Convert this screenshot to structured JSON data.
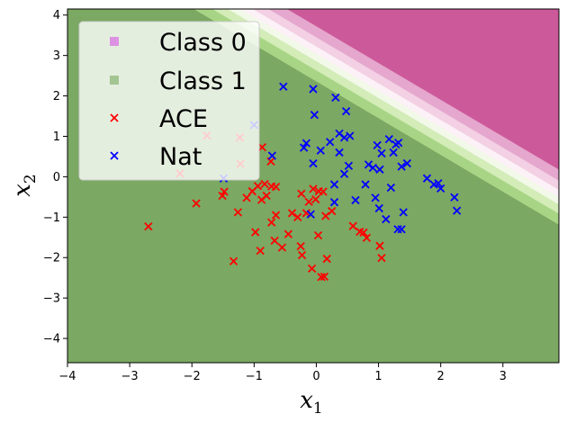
{
  "chart_data": {
    "type": "scatter",
    "title": "",
    "xlabel": "x",
    "xlabel_sub": "1",
    "ylabel": "x",
    "ylabel_sub": "2",
    "xlim": [
      -4.0,
      3.9
    ],
    "ylim": [
      -4.6,
      4.15
    ],
    "xticks": [
      -4,
      -3,
      -2,
      -1,
      0,
      1,
      2,
      3
    ],
    "yticks": [
      -4,
      -3,
      -2,
      -1,
      0,
      1,
      2,
      3,
      4
    ],
    "decision_boundary": {
      "direction": [
        1,
        1.1
      ],
      "bands": [
        {
          "from": -99,
          "to": 2.6,
          "color": "#7ba862"
        },
        {
          "from": 2.6,
          "to": 2.9,
          "color": "#a8d585"
        },
        {
          "from": 2.9,
          "to": 3.15,
          "color": "#d3ecb8"
        },
        {
          "from": 3.15,
          "to": 3.35,
          "color": "#f2f9e9"
        },
        {
          "from": 3.35,
          "to": 3.55,
          "color": "#fcf1f6"
        },
        {
          "from": 3.55,
          "to": 3.8,
          "color": "#f3d0e4"
        },
        {
          "from": 3.8,
          "to": 4.1,
          "color": "#e5a7cd"
        },
        {
          "from": 4.1,
          "to": 99,
          "color": "#cc5a9b"
        }
      ]
    },
    "legend": {
      "position": "top-left",
      "entries": [
        {
          "label": "Class 0",
          "marker": "square",
          "color": "#dc92e1"
        },
        {
          "label": "Class 1",
          "marker": "square",
          "color": "#a3c591"
        },
        {
          "label": "ACE",
          "marker": "x",
          "color": "#ff0000"
        },
        {
          "label": "Nat",
          "marker": "x",
          "color": "#0000ff"
        }
      ]
    },
    "series": [
      {
        "name": "ACE",
        "color": "#ff0000",
        "points": [
          [
            -2.7,
            -1.23
          ],
          [
            -1.93,
            -0.66
          ],
          [
            -2.19,
            0.08
          ],
          [
            -1.76,
            1.02
          ],
          [
            -1.23,
            0.97
          ],
          [
            -1.22,
            0.32
          ],
          [
            -0.87,
            0.73
          ],
          [
            -0.73,
            0.38
          ],
          [
            -1.51,
            -0.47
          ],
          [
            -1.48,
            -0.37
          ],
          [
            -1.33,
            -2.09
          ],
          [
            -1.26,
            -0.88
          ],
          [
            -1.12,
            -0.52
          ],
          [
            -1.03,
            -0.36
          ],
          [
            -0.94,
            -0.23
          ],
          [
            -0.83,
            -0.18
          ],
          [
            -0.88,
            -0.57
          ],
          [
            -0.8,
            -0.47
          ],
          [
            -0.72,
            -0.24
          ],
          [
            -0.65,
            -0.25
          ],
          [
            -0.98,
            -1.37
          ],
          [
            -0.9,
            -1.83
          ],
          [
            -0.72,
            -1.13
          ],
          [
            -0.65,
            -0.95
          ],
          [
            -0.67,
            -1.58
          ],
          [
            -0.55,
            -1.75
          ],
          [
            -0.45,
            -1.42
          ],
          [
            -0.39,
            -0.9
          ],
          [
            -0.3,
            -1.0
          ],
          [
            -0.25,
            -1.72
          ],
          [
            -0.23,
            -1.94
          ],
          [
            -0.24,
            -0.42
          ],
          [
            -0.16,
            -0.9
          ],
          [
            -0.12,
            -0.62
          ],
          [
            -0.07,
            -2.27
          ],
          [
            -0.05,
            -0.3
          ],
          [
            -0.01,
            -0.56
          ],
          [
            0.03,
            -1.45
          ],
          [
            0.04,
            -0.36
          ],
          [
            0.11,
            -0.37
          ],
          [
            0.08,
            -2.48
          ],
          [
            0.13,
            -2.47
          ],
          [
            0.15,
            -0.97
          ],
          [
            0.17,
            -2.03
          ],
          [
            0.25,
            -0.85
          ],
          [
            0.59,
            -1.22
          ],
          [
            0.7,
            -1.36
          ],
          [
            0.76,
            -1.38
          ],
          [
            0.81,
            -1.51
          ],
          [
            1.02,
            -1.71
          ],
          [
            1.05,
            -2.01
          ]
        ]
      },
      {
        "name": "Nat",
        "color": "#0000ff",
        "points": [
          [
            -1.0,
            1.28
          ],
          [
            -1.49,
            -0.04
          ],
          [
            -0.71,
            0.52
          ],
          [
            -0.53,
            2.23
          ],
          [
            -0.2,
            0.72
          ],
          [
            -0.16,
            0.83
          ],
          [
            -0.05,
            2.17
          ],
          [
            -0.03,
            1.53
          ],
          [
            -0.05,
            0.33
          ],
          [
            0.07,
            0.65
          ],
          [
            0.22,
            0.86
          ],
          [
            0.31,
            1.96
          ],
          [
            0.37,
            1.07
          ],
          [
            0.37,
            0.6
          ],
          [
            0.45,
            0.97
          ],
          [
            0.48,
            1.62
          ],
          [
            0.54,
            1.01
          ],
          [
            0.52,
            0.27
          ],
          [
            0.45,
            0.07
          ],
          [
            0.29,
            -0.19
          ],
          [
            0.29,
            -0.63
          ],
          [
            -0.09,
            -0.93
          ],
          [
            0.63,
            -0.58
          ],
          [
            0.79,
            -0.19
          ],
          [
            0.84,
            0.3
          ],
          [
            0.91,
            0.22
          ],
          [
            0.98,
            0.78
          ],
          [
            1.05,
            0.58
          ],
          [
            1.02,
            0.18
          ],
          [
            0.95,
            -0.52
          ],
          [
            1.01,
            -0.78
          ],
          [
            1.12,
            -1.05
          ],
          [
            1.17,
            0.93
          ],
          [
            1.24,
            0.6
          ],
          [
            1.28,
            0.8
          ],
          [
            1.32,
            0.84
          ],
          [
            1.2,
            -0.27
          ],
          [
            1.31,
            -1.3
          ],
          [
            1.37,
            -1.3
          ],
          [
            1.37,
            0.25
          ],
          [
            1.4,
            -0.88
          ],
          [
            1.46,
            0.33
          ],
          [
            1.78,
            -0.04
          ],
          [
            1.89,
            -0.19
          ],
          [
            1.96,
            -0.16
          ],
          [
            2.0,
            -0.29
          ],
          [
            2.22,
            -0.51
          ],
          [
            2.26,
            -0.84
          ]
        ]
      }
    ]
  }
}
